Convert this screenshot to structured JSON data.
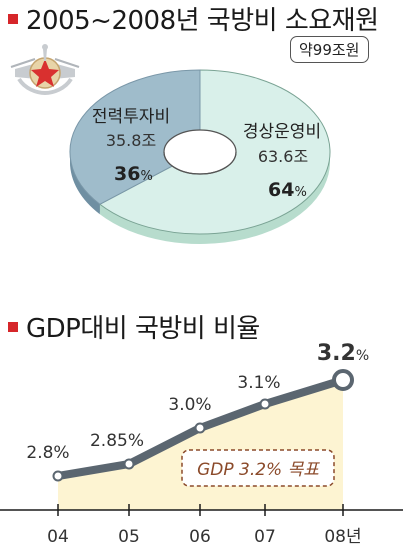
{
  "header": {
    "title": "2005~2008년 국방비 소요재원"
  },
  "budget": {
    "total_label": "약99조원"
  },
  "chart_data": [
    {
      "type": "pie",
      "variant": "donut",
      "title": "2005~2008년 국방비 소요재원",
      "total": "약99조원",
      "slices": [
        {
          "name": "경상운영비",
          "amount": "63.6조",
          "percent": 64,
          "percent_label": "64",
          "color": "#d9f0ea"
        },
        {
          "name": "전력투자비",
          "amount": "35.8조",
          "percent": 36,
          "percent_label": "36",
          "color": "#9fbccb"
        }
      ]
    },
    {
      "type": "line",
      "title": "GDP대비 국방비 비율",
      "categories": [
        "04",
        "05",
        "06",
        "07",
        "08년"
      ],
      "values": [
        2.8,
        2.85,
        3.0,
        3.1,
        3.2
      ],
      "value_labels": [
        "2.8%",
        "2.85%",
        "3.0%",
        "3.1%",
        "3.2"
      ],
      "annotation": "GDP 3.2% 목표",
      "ylim": [
        2.7,
        3.25
      ],
      "colors": {
        "line": "#5b6670",
        "area": "#fdf4d2",
        "annotation": "#8b4a2a"
      }
    }
  ],
  "percent_sign": "%"
}
